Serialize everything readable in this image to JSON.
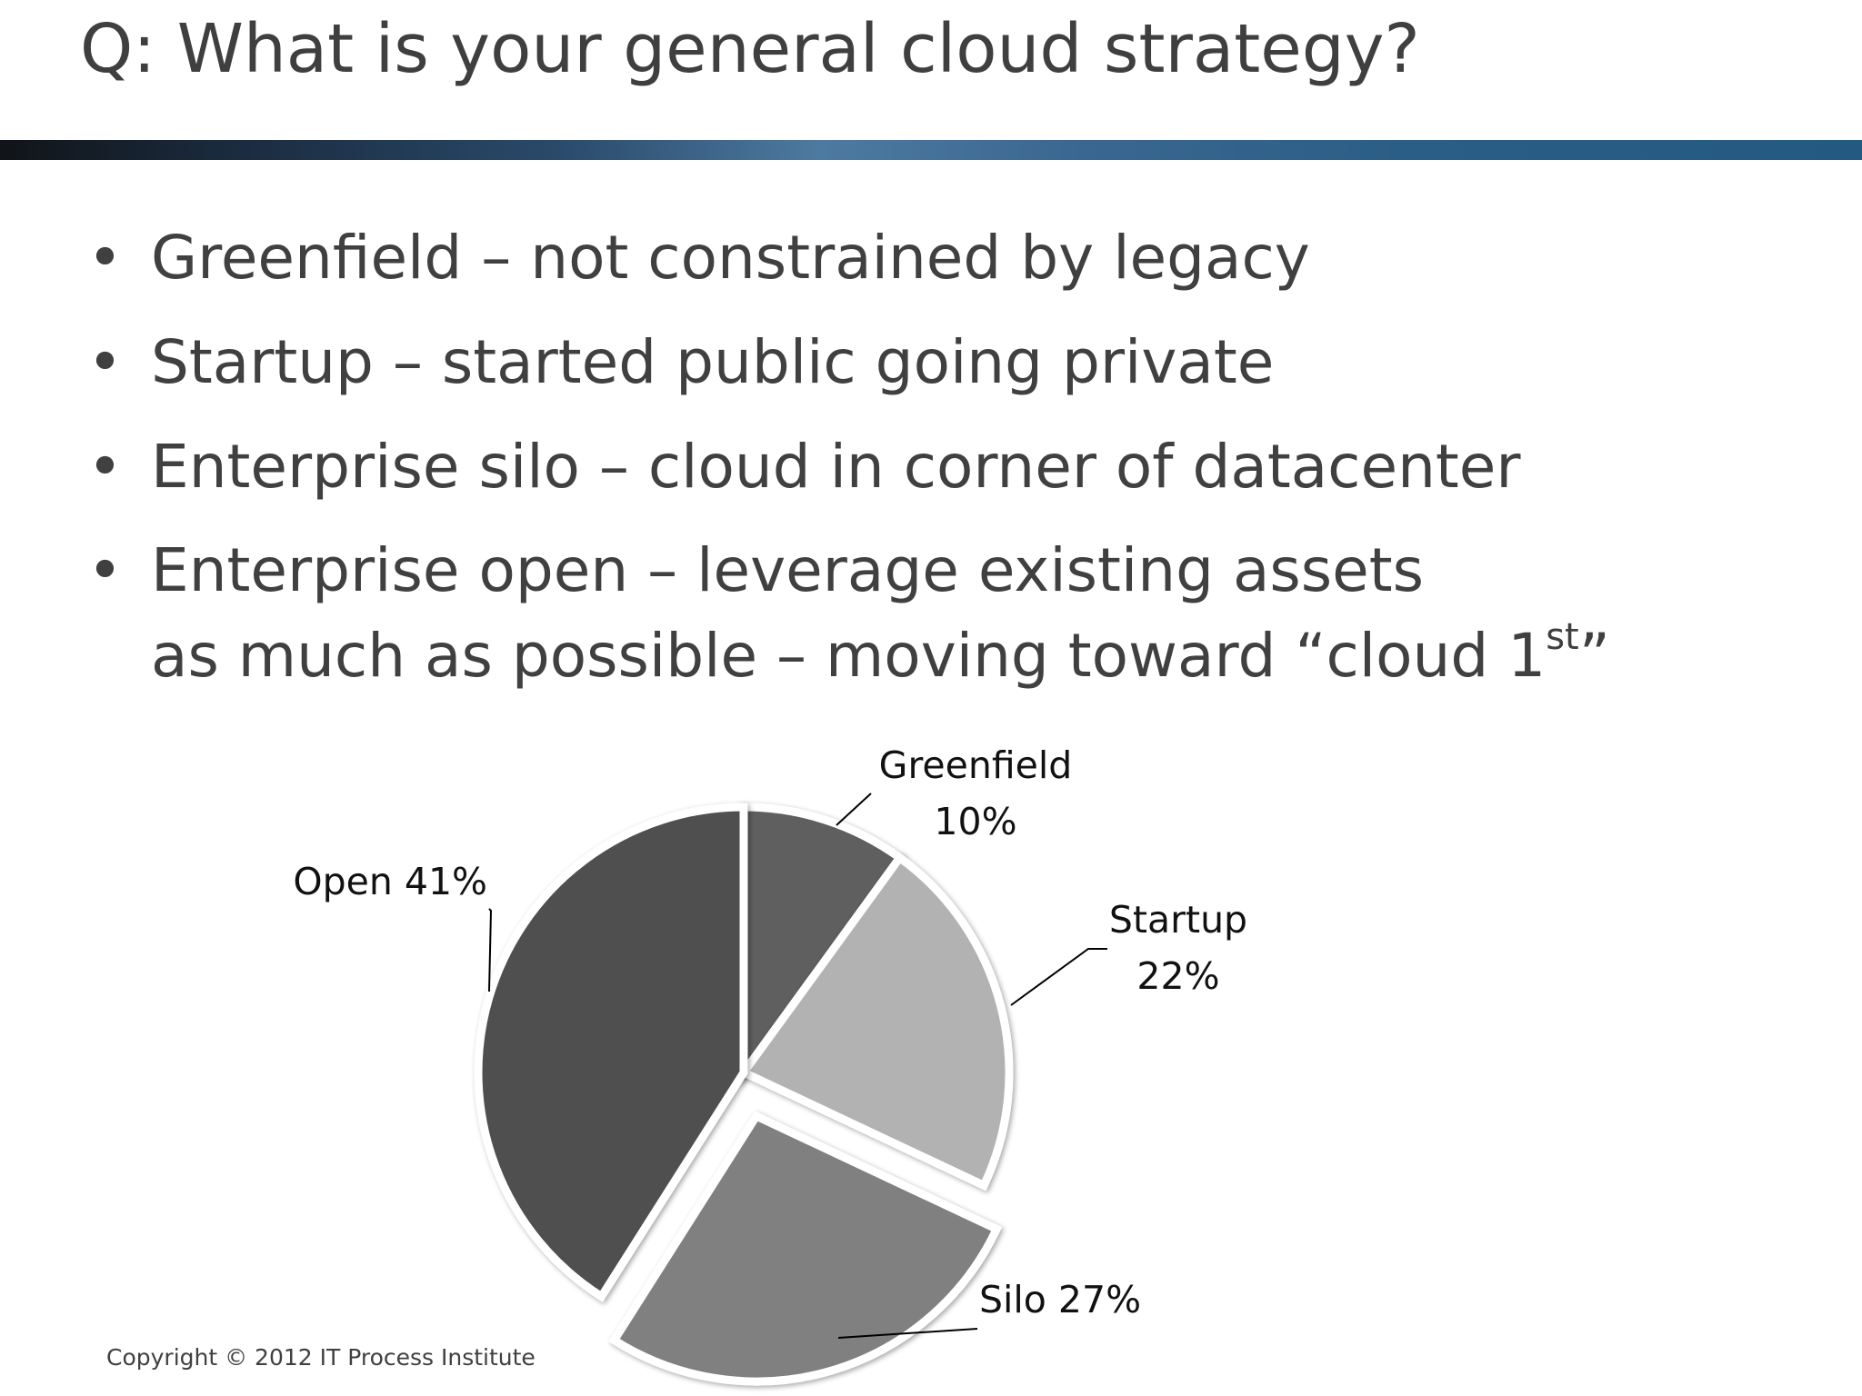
{
  "slide": {
    "title": "Q: What is your general cloud strategy?"
  },
  "bullets": [
    {
      "dot": "•",
      "lines": [
        "Greenfield – not constrained by legacy"
      ]
    },
    {
      "dot": "•",
      "lines": [
        "Startup – started public going private"
      ]
    },
    {
      "dot": "•",
      "lines": [
        "Enterprise silo – cloud in corner of datacenter"
      ]
    },
    {
      "dot": "•",
      "lines": [
        "Enterprise open – leverage existing assets",
        "as much as possible – moving toward “cloud 1"
      ],
      "superscript": "st",
      "suffix": "”"
    }
  ],
  "chart_data": {
    "type": "pie",
    "title": "",
    "slices": [
      {
        "name": "Greenfield",
        "value": 10,
        "label_lines": [
          "Greenfield",
          "10%"
        ],
        "color": "#5f5f5f"
      },
      {
        "name": "Startup",
        "value": 22,
        "label_lines": [
          "Startup",
          "22%"
        ],
        "color": "#b2b2b2"
      },
      {
        "name": "Silo",
        "value": 27,
        "label_lines": [
          "Silo 27%"
        ],
        "color": "#808080",
        "exploded": true
      },
      {
        "name": "Open",
        "value": 41,
        "label_lines": [
          "Open 41%"
        ],
        "color": "#505050"
      }
    ],
    "legend": "none",
    "data_labels": "outside with leader lines"
  },
  "footer": {
    "copyright": "Copyright © 2012 IT Process Institute"
  }
}
